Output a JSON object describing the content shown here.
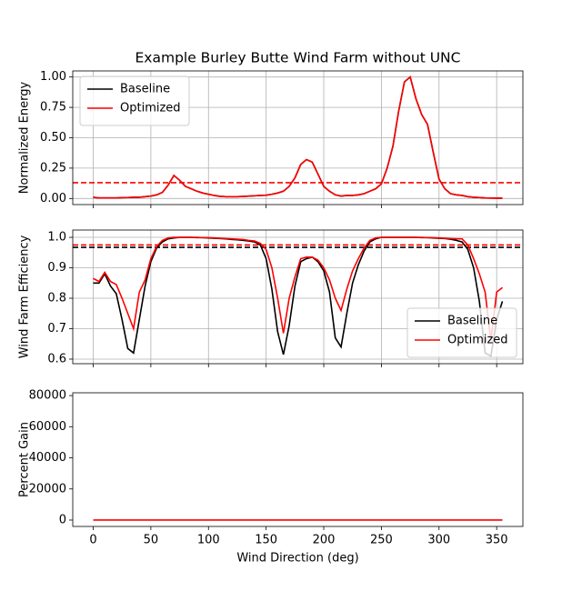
{
  "chart_data": [
    {
      "type": "line",
      "title": "Example Burley Butte Wind Farm without UNC",
      "ylabel": "Normalized Energy",
      "x": [
        0,
        5,
        10,
        15,
        20,
        25,
        30,
        35,
        40,
        45,
        50,
        55,
        60,
        65,
        70,
        75,
        80,
        85,
        90,
        95,
        100,
        105,
        110,
        115,
        120,
        125,
        130,
        135,
        140,
        145,
        150,
        155,
        160,
        165,
        170,
        175,
        180,
        185,
        190,
        195,
        200,
        205,
        210,
        215,
        220,
        225,
        230,
        235,
        240,
        245,
        250,
        255,
        260,
        265,
        270,
        275,
        280,
        285,
        290,
        295,
        300,
        305,
        310,
        315,
        320,
        325,
        330,
        335,
        340,
        345,
        350,
        355
      ],
      "series": [
        {
          "name": "Baseline",
          "color": "#000000",
          "values": [
            0.01,
            0.005,
            0.005,
            0.005,
            0.005,
            0.007,
            0.008,
            0.01,
            0.01,
            0.015,
            0.02,
            0.03,
            0.05,
            0.11,
            0.19,
            0.15,
            0.1,
            0.08,
            0.06,
            0.045,
            0.035,
            0.025,
            0.018,
            0.015,
            0.015,
            0.015,
            0.017,
            0.02,
            0.022,
            0.025,
            0.027,
            0.035,
            0.045,
            0.06,
            0.1,
            0.17,
            0.28,
            0.32,
            0.3,
            0.2,
            0.1,
            0.06,
            0.03,
            0.02,
            0.025,
            0.025,
            0.03,
            0.04,
            0.06,
            0.08,
            0.12,
            0.25,
            0.43,
            0.72,
            0.96,
            1.0,
            0.82,
            0.69,
            0.61,
            0.38,
            0.16,
            0.08,
            0.04,
            0.03,
            0.025,
            0.015,
            0.01,
            0.008,
            0.005,
            0.004,
            0.003,
            0.003
          ]
        },
        {
          "name": "Optimized",
          "color": "#ff0000",
          "values": [
            0.01,
            0.005,
            0.005,
            0.005,
            0.005,
            0.007,
            0.008,
            0.01,
            0.01,
            0.015,
            0.02,
            0.03,
            0.05,
            0.11,
            0.19,
            0.15,
            0.1,
            0.08,
            0.06,
            0.045,
            0.035,
            0.025,
            0.018,
            0.015,
            0.015,
            0.015,
            0.017,
            0.02,
            0.022,
            0.025,
            0.027,
            0.035,
            0.045,
            0.06,
            0.1,
            0.17,
            0.28,
            0.32,
            0.3,
            0.2,
            0.1,
            0.06,
            0.03,
            0.02,
            0.025,
            0.025,
            0.03,
            0.04,
            0.06,
            0.08,
            0.12,
            0.25,
            0.43,
            0.72,
            0.96,
            1.0,
            0.82,
            0.69,
            0.61,
            0.38,
            0.16,
            0.08,
            0.04,
            0.03,
            0.025,
            0.015,
            0.01,
            0.008,
            0.005,
            0.004,
            0.003,
            0.003
          ]
        }
      ],
      "hlines": [
        {
          "value": 0.13,
          "color": "#ff0000",
          "style": "dashed"
        }
      ],
      "xlim": [
        -17.75,
        372.75
      ],
      "xticks": [
        0,
        50,
        100,
        150,
        200,
        250,
        300,
        350
      ],
      "ylim": [
        -0.05,
        1.05
      ],
      "yticks": [
        {
          "value": 0,
          "label": "0.00"
        },
        {
          "value": 0.25,
          "label": "0.25"
        },
        {
          "value": 0.5,
          "label": "0.50"
        },
        {
          "value": 0.75,
          "label": "0.75"
        },
        {
          "value": 1,
          "label": "1.00"
        }
      ],
      "grid": true,
      "legend": "upper left"
    },
    {
      "type": "line",
      "ylabel": "Wind Farm Efficiency",
      "x": [
        0,
        5,
        10,
        15,
        20,
        25,
        30,
        35,
        40,
        45,
        50,
        55,
        60,
        65,
        70,
        75,
        80,
        85,
        90,
        95,
        100,
        105,
        110,
        115,
        120,
        125,
        130,
        135,
        140,
        145,
        150,
        155,
        160,
        165,
        170,
        175,
        180,
        185,
        190,
        195,
        200,
        205,
        210,
        215,
        220,
        225,
        230,
        235,
        240,
        245,
        250,
        255,
        260,
        265,
        270,
        275,
        280,
        285,
        290,
        295,
        300,
        305,
        310,
        315,
        320,
        325,
        330,
        335,
        340,
        345,
        350,
        355
      ],
      "series": [
        {
          "name": "Baseline",
          "color": "#000000",
          "values": [
            0.85,
            0.85,
            0.88,
            0.84,
            0.815,
            0.73,
            0.635,
            0.62,
            0.73,
            0.84,
            0.92,
            0.965,
            0.985,
            0.995,
            0.998,
            1.0,
            1.0,
            1.0,
            0.999,
            0.999,
            0.998,
            0.997,
            0.996,
            0.995,
            0.993,
            0.992,
            0.99,
            0.988,
            0.985,
            0.975,
            0.93,
            0.83,
            0.69,
            0.615,
            0.71,
            0.84,
            0.92,
            0.93,
            0.935,
            0.92,
            0.89,
            0.82,
            0.67,
            0.64,
            0.75,
            0.85,
            0.91,
            0.955,
            0.985,
            0.995,
            1.0,
            1.0,
            1.0,
            1.0,
            1.0,
            1.0,
            1.0,
            0.999,
            0.999,
            0.998,
            0.997,
            0.996,
            0.994,
            0.99,
            0.985,
            0.96,
            0.9,
            0.79,
            0.62,
            0.61,
            0.73,
            0.79
          ]
        },
        {
          "name": "Optimized",
          "color": "#ff0000",
          "values": [
            0.865,
            0.855,
            0.885,
            0.855,
            0.845,
            0.8,
            0.75,
            0.7,
            0.82,
            0.86,
            0.93,
            0.97,
            0.99,
            0.998,
            1.0,
            1.0,
            1.0,
            1.0,
            1.0,
            0.999,
            0.999,
            0.998,
            0.997,
            0.996,
            0.995,
            0.994,
            0.993,
            0.99,
            0.988,
            0.98,
            0.96,
            0.9,
            0.8,
            0.685,
            0.8,
            0.87,
            0.93,
            0.935,
            0.935,
            0.925,
            0.9,
            0.86,
            0.8,
            0.76,
            0.83,
            0.89,
            0.93,
            0.965,
            0.99,
            0.998,
            1.0,
            1.0,
            1.0,
            1.0,
            1.0,
            1.0,
            1.0,
            1.0,
            0.999,
            0.999,
            0.998,
            0.997,
            0.996,
            0.995,
            0.995,
            0.975,
            0.93,
            0.88,
            0.82,
            0.66,
            0.82,
            0.835
          ]
        }
      ],
      "hlines": [
        {
          "value": 0.967,
          "color": "#000000",
          "style": "dashed"
        },
        {
          "value": 0.975,
          "color": "#ff0000",
          "style": "dashed"
        }
      ],
      "xlim": [
        -17.75,
        372.75
      ],
      "xticks": [
        0,
        50,
        100,
        150,
        200,
        250,
        300,
        350
      ],
      "ylim": [
        0.585,
        1.024
      ],
      "yticks": [
        0.6,
        0.7,
        0.8,
        0.9,
        {
          "value": 1,
          "label": "1.0"
        }
      ],
      "grid": true,
      "legend": "lower right"
    },
    {
      "type": "line",
      "ylabel": "Percent Gain",
      "xlabel": "Wind Direction (deg)",
      "x": [
        0,
        5,
        10,
        15,
        20,
        25,
        30,
        35,
        40,
        45,
        50,
        55,
        60,
        65,
        70,
        75,
        80,
        85,
        90,
        95,
        100,
        105,
        110,
        115,
        120,
        125,
        130,
        135,
        140,
        145,
        150,
        155,
        160,
        165,
        170,
        175,
        180,
        185,
        190,
        195,
        200,
        205,
        210,
        215,
        220,
        225,
        230,
        235,
        240,
        245,
        250,
        255,
        260,
        265,
        270,
        275,
        280,
        285,
        290,
        295,
        300,
        305,
        310,
        315,
        320,
        325,
        330,
        335,
        340,
        345,
        350,
        355
      ],
      "series": [
        {
          "color": "#ff0000",
          "values": [
            0,
            0,
            0,
            0,
            0,
            0,
            0,
            0,
            0,
            0,
            0,
            0,
            0,
            0,
            0,
            0,
            0,
            0,
            0,
            0,
            0,
            0,
            0,
            0,
            0,
            0,
            0,
            0,
            0,
            0,
            0,
            0,
            0,
            0,
            0,
            0,
            0,
            0,
            0,
            0,
            0,
            0,
            0,
            0,
            0,
            0,
            0,
            0,
            0,
            0,
            0,
            0,
            0,
            0,
            0,
            0,
            0,
            0,
            0,
            0,
            0,
            0,
            0,
            0,
            0,
            0,
            0,
            0,
            0,
            0,
            0,
            0
          ]
        }
      ],
      "xlim": [
        -17.75,
        372.75
      ],
      "xticks": [
        0,
        50,
        100,
        150,
        200,
        250,
        300,
        350
      ],
      "ylim": [
        -4100,
        81800
      ],
      "yticks": [
        0,
        20000,
        40000,
        60000,
        80000
      ],
      "grid": false
    }
  ]
}
